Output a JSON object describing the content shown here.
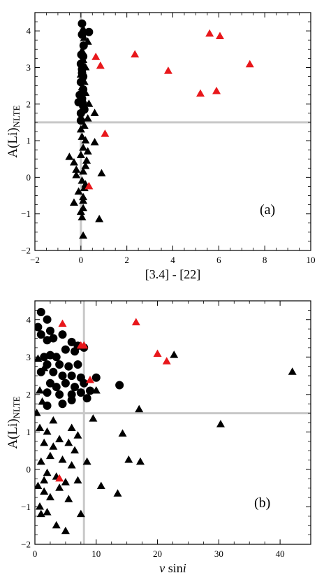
{
  "chart_data": [
    {
      "type": "scatter",
      "panel_label": "(a)",
      "ylabel_main": "A(Li)",
      "ylabel_sub": "NLTE",
      "xlabel": "[3.4] - [22]",
      "xlim": [
        -2,
        10
      ],
      "ylim": [
        -2,
        4.5
      ],
      "xticks": [
        -2,
        0,
        2,
        4,
        6,
        8,
        10
      ],
      "yticks": [
        -2,
        -1,
        0,
        1,
        2,
        3,
        4
      ],
      "ref_x": 0,
      "ref_y": 1.5,
      "ref_color": "#c8c8c8",
      "series": [
        {
          "marker": "circle",
          "color": "#000000",
          "points": [
            [
              0.05,
              4.2
            ],
            [
              0.35,
              3.97
            ],
            [
              0.05,
              3.9
            ],
            [
              0.12,
              3.6
            ],
            [
              0.02,
              3.35
            ],
            [
              0.0,
              3.1
            ],
            [
              0.05,
              2.95
            ],
            [
              0.1,
              2.75
            ],
            [
              0.0,
              2.6
            ],
            [
              0.1,
              2.4
            ],
            [
              -0.05,
              2.25
            ],
            [
              0.05,
              2.15
            ],
            [
              -0.1,
              2.05
            ],
            [
              0.1,
              1.95
            ],
            [
              0.15,
              1.85
            ],
            [
              0.0,
              1.75
            ],
            [
              0.0,
              1.55
            ],
            [
              0.05,
              2.85
            ],
            [
              0.1,
              3.3
            ]
          ]
        },
        {
          "marker": "triangle",
          "color": "#000000",
          "points": [
            [
              0.1,
              4.05
            ],
            [
              0.15,
              3.8
            ],
            [
              0.3,
              3.7
            ],
            [
              0.05,
              3.45
            ],
            [
              0.1,
              3.2
            ],
            [
              0.2,
              3.0
            ],
            [
              0.0,
              2.8
            ],
            [
              0.15,
              2.6
            ],
            [
              0.05,
              2.45
            ],
            [
              0.2,
              2.3
            ],
            [
              0.1,
              2.1
            ],
            [
              0.35,
              2.0
            ],
            [
              0.6,
              1.75
            ],
            [
              0.3,
              1.6
            ],
            [
              0.15,
              1.4
            ],
            [
              0.0,
              1.3
            ],
            [
              0.05,
              1.1
            ],
            [
              0.2,
              1.0
            ],
            [
              0.1,
              0.8
            ],
            [
              0.0,
              0.6
            ],
            [
              -0.5,
              0.55
            ],
            [
              -0.3,
              0.4
            ],
            [
              0.2,
              0.3
            ],
            [
              0.1,
              0.15
            ],
            [
              -0.2,
              0.05
            ],
            [
              0.05,
              -0.1
            ],
            [
              0.15,
              -0.3
            ],
            [
              -0.1,
              -0.4
            ],
            [
              0.1,
              -0.55
            ],
            [
              -0.3,
              -0.7
            ],
            [
              0.1,
              -0.85
            ],
            [
              0.0,
              -0.95
            ],
            [
              0.05,
              -1.1
            ],
            [
              0.2,
              -0.2
            ],
            [
              0.6,
              0.95
            ],
            [
              0.9,
              0.1
            ],
            [
              0.8,
              -1.15
            ],
            [
              0.1,
              -1.6
            ],
            [
              -0.2,
              0.2
            ],
            [
              0.25,
              0.45
            ],
            [
              0.1,
              -0.65
            ],
            [
              0.3,
              0.7
            ]
          ]
        },
        {
          "marker": "triangle",
          "color": "#e8171b",
          "points": [
            [
              0.65,
              3.28
            ],
            [
              0.85,
              3.04
            ],
            [
              2.35,
              3.35
            ],
            [
              3.8,
              2.9
            ],
            [
              5.2,
              2.28
            ],
            [
              5.6,
              3.92
            ],
            [
              5.9,
              2.35
            ],
            [
              6.05,
              3.85
            ],
            [
              7.35,
              3.08
            ],
            [
              1.05,
              1.18
            ],
            [
              0.35,
              -0.25
            ]
          ]
        }
      ]
    },
    {
      "type": "scatter",
      "panel_label": "(b)",
      "ylabel_main": "A(Li)",
      "ylabel_sub": "NLTE",
      "xlabel_italic": "v",
      "xlabel_rest": " sin",
      "xlabel_italic2": "i",
      "xlim": [
        0,
        45
      ],
      "ylim": [
        -2,
        4.5
      ],
      "xticks": [
        0,
        10,
        20,
        30,
        40
      ],
      "yticks": [
        -2,
        -1,
        0,
        1,
        2,
        3,
        4
      ],
      "ref_x": 8,
      "ref_y": 1.5,
      "ref_color": "#c8c8c8",
      "series": [
        {
          "marker": "circle",
          "color": "#000000",
          "points": [
            [
              1.0,
              4.2
            ],
            [
              0.5,
              3.8
            ],
            [
              2.0,
              4.0
            ],
            [
              1.0,
              3.6
            ],
            [
              2.5,
              3.7
            ],
            [
              2.0,
              3.45
            ],
            [
              3.0,
              3.5
            ],
            [
              4.5,
              3.6
            ],
            [
              6.0,
              3.4
            ],
            [
              5.0,
              3.2
            ],
            [
              7.0,
              3.3
            ],
            [
              8.0,
              3.25
            ],
            [
              1.5,
              3.0
            ],
            [
              2.5,
              3.05
            ],
            [
              3.5,
              3.0
            ],
            [
              6.5,
              3.15
            ],
            [
              2.0,
              2.8
            ],
            [
              4.0,
              2.8
            ],
            [
              5.5,
              2.75
            ],
            [
              7.0,
              2.8
            ],
            [
              1.0,
              2.6
            ],
            [
              3.0,
              2.6
            ],
            [
              4.5,
              2.5
            ],
            [
              6.0,
              2.5
            ],
            [
              7.5,
              2.45
            ],
            [
              2.5,
              2.3
            ],
            [
              3.5,
              2.2
            ],
            [
              5.0,
              2.3
            ],
            [
              6.5,
              2.2
            ],
            [
              8.0,
              2.3
            ],
            [
              10.0,
              2.45
            ],
            [
              13.8,
              2.25
            ],
            [
              2.0,
              2.05
            ],
            [
              4.0,
              2.0
            ],
            [
              6.0,
              2.0
            ],
            [
              7.5,
              2.05
            ],
            [
              9.0,
              2.1
            ],
            [
              2.0,
              1.7
            ],
            [
              4.5,
              1.75
            ],
            [
              6.0,
              1.85
            ],
            [
              8.5,
              1.9
            ]
          ]
        },
        {
          "marker": "triangle",
          "color": "#000000",
          "points": [
            [
              0.5,
              2.95
            ],
            [
              1.5,
              2.7
            ],
            [
              0.8,
              2.1
            ],
            [
              1.2,
              1.8
            ],
            [
              0.3,
              1.5
            ],
            [
              0.8,
              1.1
            ],
            [
              2.0,
              1.0
            ],
            [
              1.5,
              0.7
            ],
            [
              3.0,
              0.6
            ],
            [
              4.0,
              0.8
            ],
            [
              5.5,
              0.7
            ],
            [
              6.5,
              0.5
            ],
            [
              7.0,
              0.9
            ],
            [
              2.5,
              0.35
            ],
            [
              4.5,
              0.25
            ],
            [
              6.0,
              0.1
            ],
            [
              1.0,
              0.2
            ],
            [
              2.0,
              -0.1
            ],
            [
              3.5,
              -0.2
            ],
            [
              5.0,
              -0.35
            ],
            [
              7.0,
              -0.3
            ],
            [
              0.5,
              -0.45
            ],
            [
              1.5,
              -0.6
            ],
            [
              2.5,
              -0.75
            ],
            [
              4.0,
              -0.5
            ],
            [
              5.5,
              -0.8
            ],
            [
              0.8,
              -1.0
            ],
            [
              1.0,
              -1.2
            ],
            [
              2.0,
              -1.15
            ],
            [
              3.5,
              -1.5
            ],
            [
              5.0,
              -1.65
            ],
            [
              7.5,
              -1.2
            ],
            [
              8.5,
              0.2
            ],
            [
              9.5,
              1.35
            ],
            [
              10.0,
              2.1
            ],
            [
              14.3,
              0.95
            ],
            [
              15.3,
              0.25
            ],
            [
              17.0,
              1.6
            ],
            [
              17.2,
              0.2
            ],
            [
              10.8,
              -0.45
            ],
            [
              13.5,
              -0.65
            ],
            [
              22.7,
              3.05
            ],
            [
              30.3,
              1.2
            ],
            [
              42.0,
              2.6
            ],
            [
              3.0,
              1.3
            ],
            [
              1.5,
              -0.3
            ],
            [
              6.0,
              1.1
            ]
          ]
        },
        {
          "marker": "triangle",
          "color": "#e8171b",
          "points": [
            [
              4.5,
              3.88
            ],
            [
              16.5,
              3.92
            ],
            [
              7.5,
              3.3
            ],
            [
              8.0,
              3.3
            ],
            [
              20.0,
              3.08
            ],
            [
              21.5,
              2.88
            ],
            [
              9.0,
              2.38
            ],
            [
              4.0,
              -0.25
            ]
          ]
        }
      ]
    }
  ]
}
